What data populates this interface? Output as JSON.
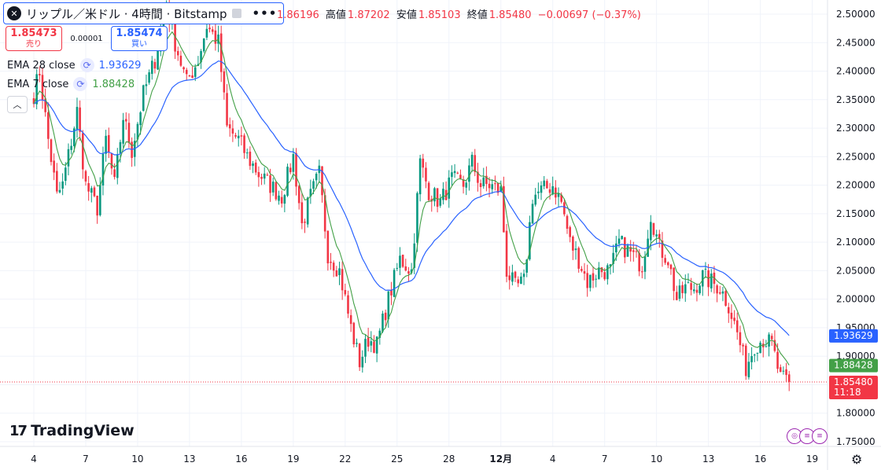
{
  "header": {
    "symbol_title": "リップル／米ドル · 4時間 · Bitstamp",
    "more_icon": "more-dots-icon",
    "ohlc": [
      {
        "label": "",
        "value": "1.86196"
      },
      {
        "label": "高値",
        "value": "1.87202"
      },
      {
        "label": "安値",
        "value": "1.85103"
      },
      {
        "label": "終値",
        "value": "1.85480"
      },
      {
        "label": "",
        "value": "−0.00697 (−0.37%)"
      }
    ]
  },
  "trade": {
    "sell_price": "1.85473",
    "sell_label": "売り",
    "spread": "0.00001",
    "buy_price": "1.85474",
    "buy_label": "買い"
  },
  "indicators": [
    {
      "name": "EMA 28 close",
      "value": "1.93629",
      "color": "#2962ff"
    },
    {
      "name": "EMA 7 close",
      "value": "1.88428",
      "color": "#43a047"
    }
  ],
  "colors": {
    "up": "#089981",
    "down": "#f23645",
    "ema28": "#2962ff",
    "ema7": "#43a047",
    "grid": "#f0f3fa"
  },
  "branding": {
    "logo_text": "TradingView"
  },
  "chart_data": {
    "type": "candlestick",
    "title": "リップル／米ドル · 4時間 · Bitstamp",
    "y_ticks": [
      "1.75000",
      "1.80000",
      "1.85000",
      "1.90000",
      "1.95000",
      "2.00000",
      "2.05000",
      "2.10000",
      "2.15000",
      "2.20000",
      "2.25000",
      "2.30000",
      "2.35000",
      "2.40000",
      "2.45000",
      "2.50000"
    ],
    "ylim": [
      1.75,
      2.5
    ],
    "x_ticks": [
      {
        "label": "4",
        "bar": 0
      },
      {
        "label": "7",
        "bar": 18
      },
      {
        "label": "10",
        "bar": 36
      },
      {
        "label": "13",
        "bar": 54
      },
      {
        "label": "16",
        "bar": 72
      },
      {
        "label": "19",
        "bar": 90
      },
      {
        "label": "22",
        "bar": 108
      },
      {
        "label": "25",
        "bar": 126
      },
      {
        "label": "28",
        "bar": 144
      },
      {
        "label": "12月",
        "bar": 162
      },
      {
        "label": "4",
        "bar": 180
      },
      {
        "label": "7",
        "bar": 198
      },
      {
        "label": "10",
        "bar": 216
      },
      {
        "label": "13",
        "bar": 234
      },
      {
        "label": "16",
        "bar": 252
      },
      {
        "label": "19",
        "bar": 270
      }
    ],
    "bar_count": 263,
    "anchors": [
      [
        0,
        2.36
      ],
      [
        2,
        2.4
      ],
      [
        5,
        2.28
      ],
      [
        8,
        2.18
      ],
      [
        10,
        2.2
      ],
      [
        15,
        2.33
      ],
      [
        18,
        2.2
      ],
      [
        22,
        2.16
      ],
      [
        25,
        2.28
      ],
      [
        28,
        2.2
      ],
      [
        31,
        2.32
      ],
      [
        34,
        2.26
      ],
      [
        38,
        2.36
      ],
      [
        42,
        2.42
      ],
      [
        46,
        2.52
      ],
      [
        49,
        2.45
      ],
      [
        53,
        2.38
      ],
      [
        57,
        2.42
      ],
      [
        60,
        2.48
      ],
      [
        64,
        2.45
      ],
      [
        67,
        2.3
      ],
      [
        71,
        2.28
      ],
      [
        74,
        2.25
      ],
      [
        78,
        2.22
      ],
      [
        82,
        2.2
      ],
      [
        86,
        2.18
      ],
      [
        90,
        2.25
      ],
      [
        93,
        2.13
      ],
      [
        96,
        2.18
      ],
      [
        99,
        2.22
      ],
      [
        102,
        2.08
      ],
      [
        106,
        2.05
      ],
      [
        110,
        1.95
      ],
      [
        113,
        1.89
      ],
      [
        116,
        1.93
      ],
      [
        119,
        1.92
      ],
      [
        123,
        2.0
      ],
      [
        127,
        2.07
      ],
      [
        131,
        2.05
      ],
      [
        134,
        2.24
      ],
      [
        137,
        2.19
      ],
      [
        141,
        2.17
      ],
      [
        145,
        2.21
      ],
      [
        149,
        2.2
      ],
      [
        152,
        2.24
      ],
      [
        155,
        2.2
      ],
      [
        158,
        2.2
      ],
      [
        162,
        2.19
      ],
      [
        164,
        2.05
      ],
      [
        167,
        2.02
      ],
      [
        170,
        2.03
      ],
      [
        173,
        2.18
      ],
      [
        176,
        2.19
      ],
      [
        180,
        2.2
      ],
      [
        183,
        2.17
      ],
      [
        186,
        2.1
      ],
      [
        189,
        2.07
      ],
      [
        192,
        2.03
      ],
      [
        196,
        2.05
      ],
      [
        200,
        2.05
      ],
      [
        203,
        2.1
      ],
      [
        207,
        2.08
      ],
      [
        211,
        2.06
      ],
      [
        214,
        2.15
      ],
      [
        217,
        2.09
      ],
      [
        220,
        2.07
      ],
      [
        223,
        2.0
      ],
      [
        226,
        2.02
      ],
      [
        229,
        2.02
      ],
      [
        232,
        2.04
      ],
      [
        235,
        2.03
      ],
      [
        238,
        2.02
      ],
      [
        241,
        1.99
      ],
      [
        244,
        1.94
      ],
      [
        247,
        1.88
      ],
      [
        250,
        1.92
      ],
      [
        253,
        1.93
      ],
      [
        256,
        1.92
      ],
      [
        259,
        1.86
      ],
      [
        262,
        1.8548
      ]
    ],
    "ema28_last": 1.93629,
    "ema7_last": 1.88428,
    "last_close": 1.8548,
    "price_labels": [
      {
        "series": "EMA 28",
        "value": "1.93629",
        "color": "#2962ff"
      },
      {
        "series": "EMA 7",
        "value": "1.88428",
        "color": "#43a047"
      },
      {
        "series": "Close",
        "value": "1.85480",
        "countdown": "11:18",
        "color": "#f23645"
      }
    ]
  },
  "footer": {
    "settings_icon": "gear-icon",
    "calendar_icons": [
      "event-icon",
      "us-flag-icon",
      "us-flag-icon"
    ]
  }
}
